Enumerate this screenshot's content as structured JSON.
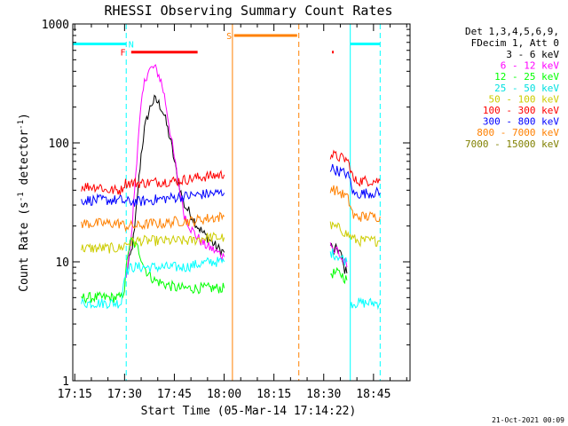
{
  "chart_data": {
    "type": "line",
    "title": "RHESSI Observing Summary Count Rates",
    "xlabel": "Start Time (05-Mar-14 17:14:22)",
    "ylabel_main": "Count Rate (s",
    "ylabel_sup1": "-1",
    "ylabel_mid": " detector",
    "ylabel_sup2": "-1",
    "ylabel_end": ")",
    "yscale": "log",
    "ylim": [
      1,
      1000
    ],
    "xlim_min": [
      1034.4,
      1136
    ],
    "x_tick_labels": [
      "17:15",
      "17:30",
      "17:45",
      "18:00",
      "18:15",
      "18:30",
      "18:45"
    ],
    "x_tick_values": [
      1035,
      1050,
      1065,
      1080,
      1095,
      1110,
      1125
    ],
    "y_tick_labels": [
      "1",
      "10",
      "100",
      "1000"
    ],
    "y_tick_values": [
      1,
      10,
      100,
      1000
    ],
    "legend_header": [
      "Det 1,3,4,5,6,9,",
      "FDecim 1, Att 0"
    ],
    "series": [
      {
        "name": "3 - 6 keV",
        "color": "#000000",
        "segments": [
          [
            [
              1050.5,
              8
            ],
            [
              1052,
              12
            ],
            [
              1053,
              18
            ],
            [
              1054,
              40
            ],
            [
              1055,
              80
            ],
            [
              1056,
              130
            ],
            [
              1057,
              170
            ],
            [
              1058,
              210
            ],
            [
              1059,
              230
            ],
            [
              1060,
              220
            ],
            [
              1061,
              200
            ],
            [
              1062,
              170
            ],
            [
              1063,
              130
            ],
            [
              1064,
              100
            ],
            [
              1065,
              70
            ],
            [
              1066,
              50
            ],
            [
              1067,
              38
            ],
            [
              1068,
              30
            ],
            [
              1070,
              25
            ],
            [
              1072,
              20
            ],
            [
              1074,
              17
            ],
            [
              1076,
              15
            ],
            [
              1078,
              13
            ],
            [
              1080,
              12
            ]
          ],
          [
            [
              1112,
              14
            ],
            [
              1113,
              12
            ],
            [
              1114,
              13
            ],
            [
              1115,
              12
            ],
            [
              1116,
              9
            ],
            [
              1117,
              8
            ]
          ]
        ]
      },
      {
        "name": "6 - 12 keV",
        "color": "#ff00ff",
        "segments": [
          [
            [
              1050.5,
              8
            ],
            [
              1052,
              15
            ],
            [
              1053,
              40
            ],
            [
              1054,
              100
            ],
            [
              1055,
              200
            ],
            [
              1056,
              320
            ],
            [
              1057,
              400
            ],
            [
              1058,
              420
            ],
            [
              1059,
              430
            ],
            [
              1060,
              390
            ],
            [
              1061,
              330
            ],
            [
              1062,
              250
            ],
            [
              1063,
              170
            ],
            [
              1064,
              110
            ],
            [
              1065,
              75
            ],
            [
              1066,
              50
            ],
            [
              1067,
              35
            ],
            [
              1068,
              25
            ],
            [
              1070,
              19
            ],
            [
              1072,
              16
            ],
            [
              1074,
              14
            ],
            [
              1076,
              13
            ],
            [
              1078,
              12
            ],
            [
              1080,
              11
            ]
          ],
          [
            [
              1112,
              16
            ],
            [
              1113,
              12
            ],
            [
              1114,
              13
            ],
            [
              1115,
              11
            ],
            [
              1116,
              10
            ],
            [
              1117,
              9
            ]
          ]
        ]
      },
      {
        "name": "12 - 25 keV",
        "color": "#00ff00",
        "segments": [
          [
            [
              1037,
              5
            ],
            [
              1049,
              5
            ],
            [
              1050,
              6
            ],
            [
              1051,
              12
            ],
            [
              1052,
              15
            ],
            [
              1053,
              14
            ],
            [
              1054,
              13
            ],
            [
              1055,
              11
            ],
            [
              1056,
              9
            ],
            [
              1057,
              8
            ],
            [
              1059,
              7
            ],
            [
              1062,
              6.5
            ],
            [
              1066,
              6
            ],
            [
              1070,
              6
            ],
            [
              1074,
              6
            ],
            [
              1080,
              6
            ]
          ],
          [
            [
              1112,
              8
            ],
            [
              1115,
              8
            ],
            [
              1117,
              7
            ]
          ]
        ]
      },
      {
        "name": "25 - 50 keV",
        "color": "#00ffff",
        "segments": [
          [
            [
              1037,
              4.5
            ],
            [
              1049,
              4.5
            ],
            [
              1050,
              8
            ],
            [
              1052,
              9
            ],
            [
              1056,
              9
            ],
            [
              1060,
              9
            ],
            [
              1064,
              9
            ],
            [
              1068,
              9
            ],
            [
              1072,
              9.5
            ],
            [
              1076,
              10
            ],
            [
              1080,
              10
            ]
          ],
          [
            [
              1112,
              12
            ],
            [
              1115,
              11
            ],
            [
              1117,
              10
            ]
          ],
          [
            [
              1118,
              4.5
            ],
            [
              1127,
              4.5
            ]
          ]
        ]
      },
      {
        "name": "50 - 100 keV",
        "color": "#cccc00",
        "segments": [
          [
            [
              1037,
              13
            ],
            [
              1049,
              13
            ],
            [
              1050,
              14
            ],
            [
              1054,
              15
            ],
            [
              1058,
              15
            ],
            [
              1062,
              15
            ],
            [
              1066,
              15
            ],
            [
              1070,
              15
            ],
            [
              1074,
              16
            ],
            [
              1080,
              16
            ]
          ],
          [
            [
              1112,
              20
            ],
            [
              1115,
              19
            ],
            [
              1117,
              17
            ],
            [
              1120,
              15
            ],
            [
              1124,
              15
            ],
            [
              1127,
              15
            ]
          ]
        ]
      },
      {
        "name": "100 - 300 keV",
        "color": "#ff0000",
        "segments": [
          [
            [
              1037,
              43
            ],
            [
              1043,
              43
            ],
            [
              1044,
              40
            ],
            [
              1049,
              40
            ],
            [
              1050,
              46
            ],
            [
              1056,
              46
            ],
            [
              1060,
              47
            ],
            [
              1066,
              48
            ],
            [
              1070,
              50
            ],
            [
              1074,
              52
            ],
            [
              1080,
              54
            ]
          ],
          [
            [
              1112,
              80
            ],
            [
              1115,
              75
            ],
            [
              1117,
              72
            ],
            [
              1118,
              62
            ],
            [
              1119,
              48
            ],
            [
              1124,
              48
            ],
            [
              1127,
              48
            ]
          ]
        ]
      },
      {
        "name": "300 - 800 keV",
        "color": "#0000ff",
        "segments": [
          [
            [
              1037,
              33
            ],
            [
              1049,
              33
            ],
            [
              1050,
              32
            ],
            [
              1054,
              32
            ],
            [
              1058,
              33
            ],
            [
              1062,
              34
            ],
            [
              1066,
              35
            ],
            [
              1070,
              36
            ],
            [
              1074,
              37
            ],
            [
              1080,
              38
            ]
          ],
          [
            [
              1112,
              62
            ],
            [
              1115,
              57
            ],
            [
              1117,
              55
            ],
            [
              1118,
              48
            ],
            [
              1119,
              37
            ],
            [
              1124,
              38
            ],
            [
              1127,
              38
            ]
          ]
        ]
      },
      {
        "name": "800 - 7000 keV",
        "color": "#ff8000",
        "segments": [
          [
            [
              1037,
              21
            ],
            [
              1049,
              21
            ],
            [
              1050,
              20
            ],
            [
              1054,
              20
            ],
            [
              1058,
              21
            ],
            [
              1062,
              21
            ],
            [
              1066,
              22
            ],
            [
              1070,
              22
            ],
            [
              1074,
              23
            ],
            [
              1080,
              24
            ]
          ],
          [
            [
              1112,
              42
            ],
            [
              1115,
              38
            ],
            [
              1117,
              35
            ],
            [
              1118,
              30
            ],
            [
              1119,
              24
            ],
            [
              1124,
              24
            ],
            [
              1127,
              24
            ]
          ]
        ]
      },
      {
        "name": "7000 - 15000 keV",
        "color": "#808000",
        "segments": []
      }
    ],
    "status_bars": [
      {
        "label": "N",
        "color": "#00ffff",
        "y": 680,
        "ranges": [
          [
            1034.4,
            1050.5
          ],
          [
            1118,
            1127
          ]
        ],
        "label_at": 1052
      },
      {
        "label": "F",
        "color": "#ff0000",
        "y": 580,
        "ranges": [
          [
            1052,
            1072
          ],
          [
            1112.5,
            1113
          ]
        ],
        "label_at": 1049.5
      },
      {
        "label": "S",
        "color": "#ff8000",
        "y": 800,
        "ranges": [
          [
            1083,
            1102
          ]
        ],
        "label_at": 1081.5
      }
    ],
    "vlines": [
      {
        "x": 1050.5,
        "color": "#00ffff",
        "dash": true
      },
      {
        "x": 1082.5,
        "color": "#ff8000",
        "dash": false
      },
      {
        "x": 1102.5,
        "color": "#ff8000",
        "dash": true
      },
      {
        "x": 1118,
        "color": "#00ffff",
        "dash": false
      },
      {
        "x": 1127,
        "color": "#00ffff",
        "dash": true
      }
    ],
    "footer_date": "21-Oct-2021 00:09"
  }
}
